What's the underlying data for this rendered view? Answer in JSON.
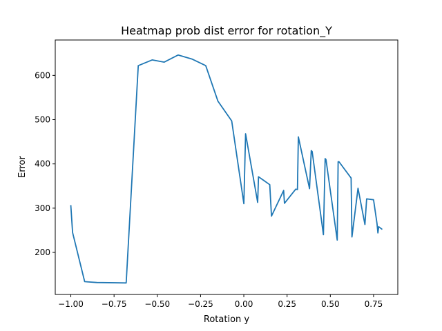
{
  "chart_data": {
    "type": "line",
    "title": "Heatmap prob dist error for rotation_Y",
    "xlabel": "Rotation y",
    "ylabel": "Error",
    "xlim": [
      -1.09,
      0.89
    ],
    "ylim": [
      105,
      680
    ],
    "grid": false,
    "x_ticks": [
      -1.0,
      -0.75,
      -0.5,
      -0.25,
      0.0,
      0.25,
      0.5,
      0.75
    ],
    "x_tick_labels": [
      "−1.00",
      "−0.75",
      "−0.50",
      "−0.25",
      "0.00",
      "0.25",
      "0.50",
      "0.75"
    ],
    "y_ticks": [
      200,
      300,
      400,
      500,
      600
    ],
    "y_tick_labels": [
      "200",
      "300",
      "400",
      "500",
      "600"
    ],
    "series": [
      {
        "color": "#1f77b4",
        "x": [
          -1.0,
          -0.99,
          -0.92,
          -0.85,
          -0.68,
          -0.61,
          -0.53,
          -0.46,
          -0.38,
          -0.3,
          -0.22,
          -0.15,
          -0.07,
          0.0,
          0.01,
          0.08,
          0.085,
          0.15,
          0.16,
          0.23,
          0.235,
          0.3,
          0.31,
          0.315,
          0.38,
          0.39,
          0.395,
          0.46,
          0.47,
          0.475,
          0.54,
          0.545,
          0.55,
          0.62,
          0.625,
          0.66,
          0.7,
          0.71,
          0.75,
          0.77,
          0.775,
          0.78,
          0.8
        ],
        "y": [
          307,
          245,
          134,
          132,
          131,
          622,
          635,
          630,
          646,
          637,
          622,
          542,
          497,
          310,
          468,
          313,
          371,
          353,
          282,
          340,
          311,
          343,
          342,
          461,
          344,
          430,
          428,
          240,
          412,
          410,
          228,
          405,
          405,
          368,
          235,
          345,
          263,
          321,
          319,
          265,
          244,
          258,
          252
        ]
      }
    ]
  }
}
